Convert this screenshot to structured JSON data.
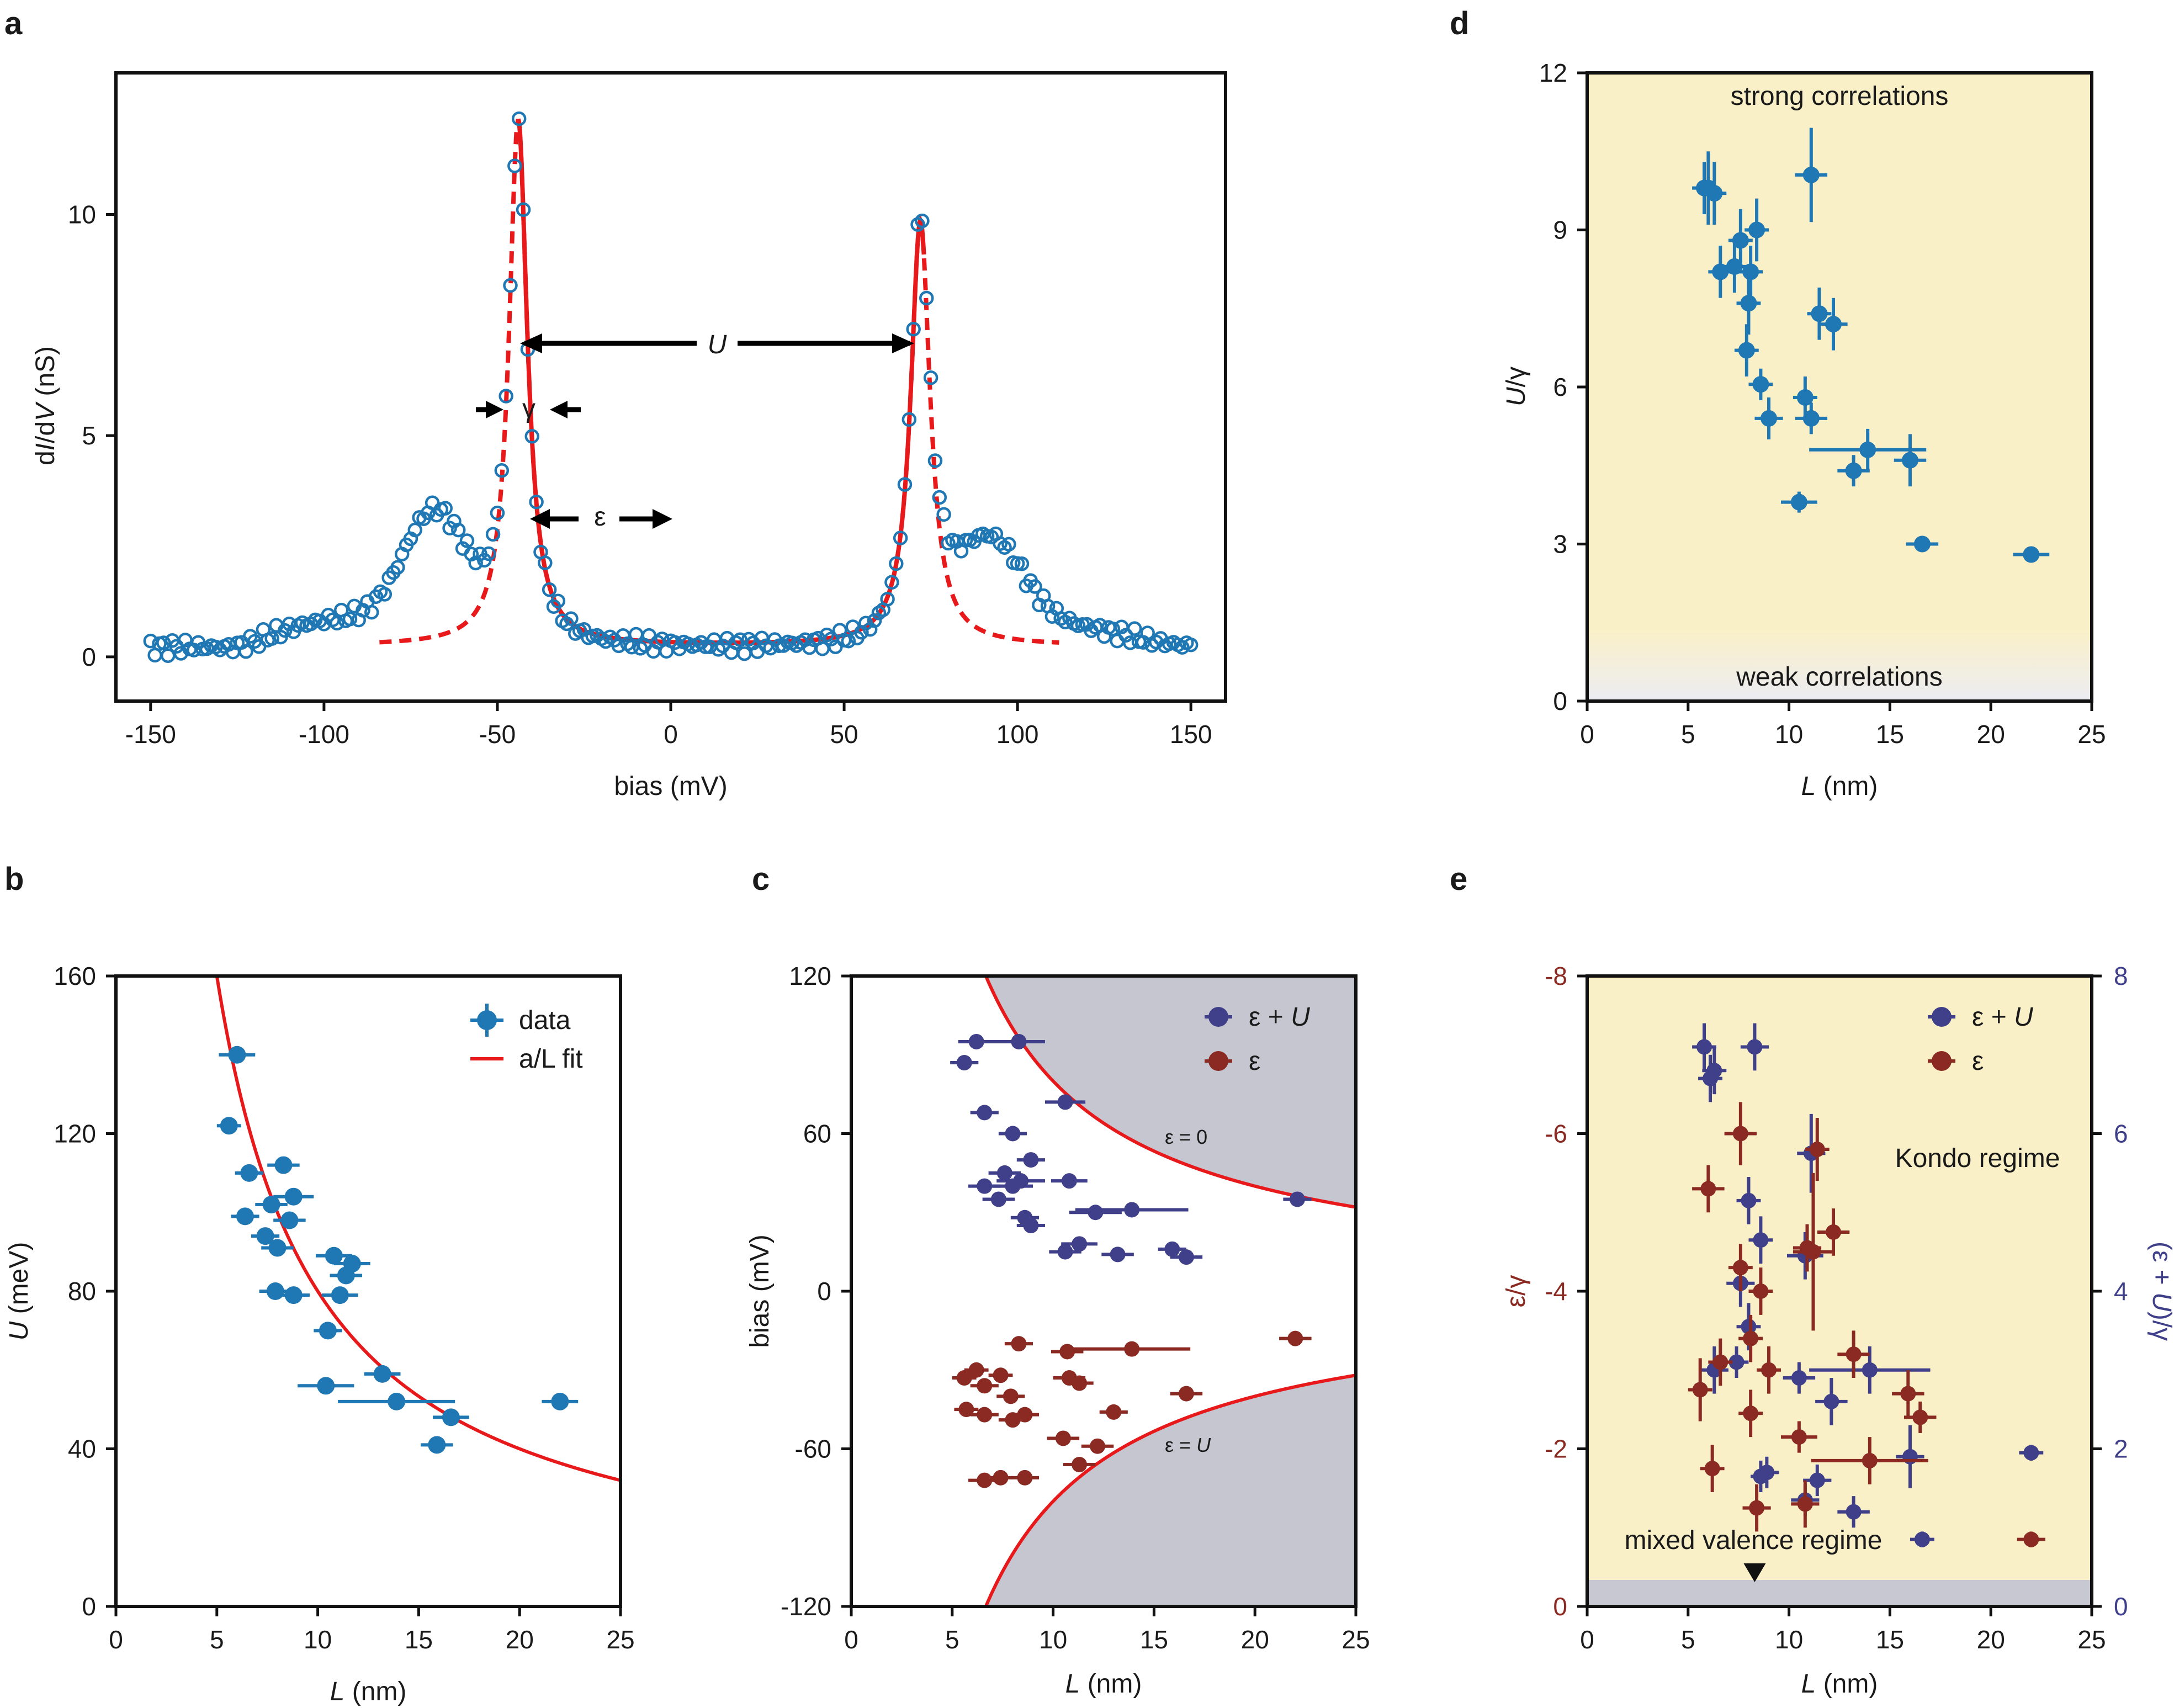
{
  "figure": {
    "panel_labels": [
      "a",
      "b",
      "c",
      "d",
      "e"
    ],
    "colors": {
      "data_blue": "#1f77b4",
      "fit_red": "#e8191b",
      "eU_purple": "#3f3f8a",
      "eps_red": "#8b2a22",
      "shade_yellow": "#faf0c8",
      "shade_gray": "#c6c6d0",
      "mixed_band": "#c8c8d2"
    }
  },
  "chart_data": [
    {
      "id": "a",
      "type": "scatter",
      "xlabel": "bias (mV)",
      "ylabel": "dI/dV (nS)",
      "ylabel_parts": [
        "d",
        "I",
        "/d",
        "V",
        " (nS)"
      ],
      "xlim": [
        -160,
        160
      ],
      "ylim": [
        -1,
        13.2
      ],
      "xticks": [
        -150,
        -100,
        -50,
        0,
        50,
        100,
        150
      ],
      "xtick_labels": [
        "-150",
        "-100",
        "-50",
        "0",
        "50",
        "100",
        "150"
      ],
      "yticks": [
        0,
        5,
        10
      ],
      "ytick_labels": [
        "0",
        "5",
        "10"
      ],
      "series": [
        {
          "style": "open-circle",
          "color": "#1f77b4",
          "model": {
            "background_eps": -44,
            "background_epsU": 72,
            "solid_fit_range": [
              -44,
              73
            ],
            "dashed_fit_range": [
              -84,
              112
            ]
          }
        }
      ],
      "annotations": {
        "U": "U",
        "gamma": "γ",
        "epsilon": "ε"
      }
    },
    {
      "id": "b",
      "type": "scatter",
      "xlabel": "L (nm)",
      "xlabel_parts": [
        "L",
        " (nm)"
      ],
      "ylabel": "U (meV)",
      "ylabel_parts": [
        "U",
        " (meV)"
      ],
      "xlim": [
        0,
        25
      ],
      "ylim": [
        0,
        160
      ],
      "xticks": [
        0,
        5,
        10,
        15,
        20,
        25
      ],
      "yticks": [
        0,
        40,
        80,
        120,
        160
      ],
      "series": [
        {
          "name": "data",
          "color": "#1f77b4",
          "points": [
            [
              6.0,
              140,
              0.9
            ],
            [
              5.6,
              122,
              0.6
            ],
            [
              6.6,
              110,
              0.7
            ],
            [
              8.3,
              112,
              0.8
            ],
            [
              7.7,
              102,
              0.8
            ],
            [
              8.8,
              104,
              1.0
            ],
            [
              6.4,
              99,
              0.7
            ],
            [
              8.6,
              98,
              0.8
            ],
            [
              7.4,
              94,
              0.7
            ],
            [
              8.0,
              91,
              0.8
            ],
            [
              7.9,
              80,
              0.8
            ],
            [
              8.8,
              79,
              0.8
            ],
            [
              10.8,
              89,
              0.9
            ],
            [
              11.7,
              87,
              0.9
            ],
            [
              11.4,
              84,
              0.8
            ],
            [
              11.1,
              79,
              0.9
            ],
            [
              10.5,
              70,
              0.7
            ],
            [
              10.4,
              56,
              1.4
            ],
            [
              13.2,
              59,
              0.9
            ],
            [
              13.9,
              52,
              2.9
            ],
            [
              16.6,
              48,
              0.9
            ],
            [
              15.9,
              41,
              0.8
            ],
            [
              22.0,
              52,
              0.9
            ]
          ]
        },
        {
          "name": "a/L fit",
          "color": "#e8191b",
          "type": "line",
          "a": 800
        }
      ],
      "legend": {
        "position": "top-right",
        "labels": [
          "data",
          "a/L fit"
        ]
      }
    },
    {
      "id": "c",
      "type": "scatter",
      "xlabel": "L (nm)",
      "xlabel_parts": [
        "L",
        " (nm)"
      ],
      "ylabel": "bias (mV)",
      "xlim": [
        0,
        25
      ],
      "ylim": [
        -120,
        120
      ],
      "xticks": [
        0,
        5,
        10,
        15,
        20,
        25
      ],
      "yticks": [
        -120,
        -60,
        0,
        60,
        120
      ],
      "series": [
        {
          "name": "ε + U",
          "color": "#3f3f8a",
          "points": [
            [
              6.2,
              95,
              0.9
            ],
            [
              8.3,
              95,
              1.3
            ],
            [
              5.6,
              87,
              0.7
            ],
            [
              6.6,
              68,
              0.7
            ],
            [
              10.6,
              72,
              1.0
            ],
            [
              8.0,
              60,
              0.7
            ],
            [
              8.9,
              50,
              0.7
            ],
            [
              7.6,
              45,
              0.8
            ],
            [
              8.4,
              42,
              1.2
            ],
            [
              10.8,
              42,
              0.9
            ],
            [
              6.6,
              40,
              0.8
            ],
            [
              8.0,
              40,
              1.0
            ],
            [
              7.3,
              35,
              0.8
            ],
            [
              12.1,
              30,
              1.3
            ],
            [
              13.9,
              31,
              2.8
            ],
            [
              8.6,
              28,
              0.7
            ],
            [
              8.9,
              25,
              0.7
            ],
            [
              11.3,
              18,
              0.9
            ],
            [
              10.6,
              15,
              0.8
            ],
            [
              13.2,
              14,
              0.8
            ],
            [
              15.9,
              16,
              0.7
            ],
            [
              16.6,
              13,
              0.8
            ],
            [
              22.1,
              35,
              0.7
            ]
          ]
        },
        {
          "name": "ε",
          "color": "#8b2a22",
          "points": [
            [
              5.6,
              -33,
              0.6
            ],
            [
              6.2,
              -30,
              0.6
            ],
            [
              6.6,
              -36,
              0.7
            ],
            [
              7.4,
              -32,
              0.6
            ],
            [
              8.3,
              -20,
              0.7
            ],
            [
              10.7,
              -23,
              0.8
            ],
            [
              13.9,
              -22,
              2.9
            ],
            [
              22.0,
              -18,
              0.8
            ],
            [
              7.9,
              -40,
              0.7
            ],
            [
              8.6,
              -47,
              0.7
            ],
            [
              8.0,
              -49,
              0.7
            ],
            [
              10.8,
              -33,
              0.8
            ],
            [
              11.3,
              -35,
              0.7
            ],
            [
              16.6,
              -39,
              0.8
            ],
            [
              10.5,
              -56,
              0.8
            ],
            [
              12.2,
              -59,
              0.8
            ],
            [
              13.0,
              -46,
              0.7
            ],
            [
              5.7,
              -45,
              0.6
            ],
            [
              6.6,
              -47,
              0.7
            ],
            [
              11.3,
              -66,
              0.8
            ],
            [
              6.6,
              -72,
              0.8
            ],
            [
              7.4,
              -71,
              0.6
            ],
            [
              8.6,
              -71,
              0.7
            ]
          ]
        }
      ],
      "boundaries": [
        {
          "label": "ε = 0",
          "a": 800,
          "sign": 1
        },
        {
          "label": "ε = U",
          "a": 800,
          "sign": -1
        }
      ],
      "legend": {
        "position": "top-right",
        "labels": [
          "ε + U",
          "ε"
        ]
      }
    },
    {
      "id": "d",
      "type": "scatter",
      "xlabel": "L (nm)",
      "xlabel_parts": [
        "L",
        " (nm)"
      ],
      "ylabel": "U/γ",
      "ylabel_parts": [
        "U",
        "/γ"
      ],
      "xlim": [
        0,
        25
      ],
      "ylim": [
        0,
        12
      ],
      "xticks": [
        0,
        5,
        10,
        15,
        20,
        25
      ],
      "yticks": [
        0,
        3,
        6,
        9,
        12
      ],
      "regions": {
        "strong": "strong correlations",
        "weak": "weak correlations"
      },
      "series": [
        {
          "color": "#1f77b4",
          "points": [
            [
              5.8,
              9.8,
              0.6,
              0.5
            ],
            [
              6.3,
              9.7,
              0.6,
              0.6
            ],
            [
              6.0,
              9.8,
              0.5,
              0.7
            ],
            [
              11.1,
              10.05,
              0.8,
              0.9
            ],
            [
              8.4,
              9.0,
              0.6,
              0.6
            ],
            [
              7.6,
              8.8,
              0.6,
              0.6
            ],
            [
              6.6,
              8.2,
              0.6,
              0.5
            ],
            [
              7.3,
              8.3,
              0.6,
              0.5
            ],
            [
              8.1,
              8.2,
              0.6,
              0.5
            ],
            [
              8.0,
              7.6,
              0.6,
              0.6
            ],
            [
              11.5,
              7.4,
              0.6,
              0.5
            ],
            [
              12.2,
              7.2,
              0.7,
              0.5
            ],
            [
              7.9,
              6.7,
              0.6,
              0.5
            ],
            [
              8.6,
              6.05,
              0.6,
              0.3
            ],
            [
              10.8,
              5.8,
              0.6,
              0.4
            ],
            [
              9.0,
              5.4,
              0.7,
              0.4
            ],
            [
              11.1,
              5.4,
              0.8,
              0.3
            ],
            [
              13.9,
              4.8,
              2.9,
              0.4
            ],
            [
              16.0,
              4.6,
              0.8,
              0.5
            ],
            [
              13.2,
              4.4,
              0.8,
              0.3
            ],
            [
              10.5,
              3.8,
              0.9,
              0.2
            ],
            [
              16.6,
              3.0,
              0.8,
              0.1
            ],
            [
              22.0,
              2.8,
              0.9,
              0.1
            ]
          ]
        }
      ]
    },
    {
      "id": "e",
      "type": "scatter",
      "xlabel": "L (nm)",
      "xlabel_parts": [
        "L",
        " (nm)"
      ],
      "ylabel_left": "ε/γ",
      "ylabel_right": "(ε + U)/γ",
      "ylabel_right_parts": [
        "(ε + ",
        "U",
        ")/γ"
      ],
      "xlim": [
        0,
        25
      ],
      "ylim_left": [
        0,
        -8
      ],
      "ylim_right": [
        0,
        8
      ],
      "xticks": [
        0,
        5,
        10,
        15,
        20,
        25
      ],
      "yticks_left": [
        0,
        -2,
        -4,
        -6,
        -8
      ],
      "yticks_right": [
        0,
        2,
        4,
        6,
        8
      ],
      "regions": {
        "kondo": "Kondo regime",
        "mixed": "mixed valence regime"
      },
      "series": [
        {
          "name": "ε + U",
          "color": "#3f3f8a",
          "points": [
            [
              5.8,
              7.1,
              0.6,
              0.3
            ],
            [
              8.3,
              7.1,
              0.7,
              0.3
            ],
            [
              6.3,
              6.8,
              0.6,
              0.3
            ],
            [
              6.1,
              6.7,
              0.6,
              0.3
            ],
            [
              11.1,
              5.75,
              0.7,
              0.5
            ],
            [
              8.0,
              5.15,
              0.6,
              0.3
            ],
            [
              8.6,
              4.65,
              0.6,
              0.3
            ],
            [
              10.8,
              4.45,
              0.9,
              0.3
            ],
            [
              7.6,
              4.1,
              0.7,
              0.3
            ],
            [
              8.0,
              3.55,
              0.6,
              0.3
            ],
            [
              14.0,
              3.0,
              3.0,
              0.3
            ],
            [
              6.3,
              3.0,
              0.7,
              0.3
            ],
            [
              7.4,
              3.1,
              0.6,
              0.2
            ],
            [
              10.5,
              2.9,
              0.8,
              0.2
            ],
            [
              12.1,
              2.6,
              0.8,
              0.3
            ],
            [
              16.0,
              1.9,
              0.7,
              0.4
            ],
            [
              22.0,
              1.95,
              0.6,
              0.1
            ],
            [
              8.9,
              1.7,
              0.6,
              0.2
            ],
            [
              8.6,
              1.65,
              0.5,
              0.2
            ],
            [
              11.4,
              1.6,
              0.7,
              0.2
            ],
            [
              10.8,
              1.35,
              0.7,
              0.2
            ],
            [
              13.2,
              1.2,
              0.8,
              0.2
            ],
            [
              16.6,
              0.85,
              0.6,
              0.1
            ]
          ]
        },
        {
          "name": "ε",
          "color": "#8b2a22",
          "points": [
            [
              7.6,
              -6.0,
              0.8,
              0.4
            ],
            [
              11.4,
              -5.8,
              0.6,
              0.4
            ],
            [
              6.0,
              -5.3,
              0.8,
              0.3
            ],
            [
              12.2,
              -4.75,
              0.8,
              0.3
            ],
            [
              10.9,
              -4.55,
              0.7,
              0.3
            ],
            [
              7.6,
              -4.3,
              0.6,
              0.3
            ],
            [
              8.6,
              -4.0,
              0.6,
              0.3
            ],
            [
              11.2,
              -4.5,
              1.0,
              1.0
            ],
            [
              8.1,
              -3.4,
              0.6,
              0.3
            ],
            [
              13.2,
              -3.2,
              0.8,
              0.3
            ],
            [
              6.6,
              -3.1,
              0.6,
              0.3
            ],
            [
              9.0,
              -3.0,
              0.6,
              0.3
            ],
            [
              5.6,
              -2.75,
              0.6,
              0.4
            ],
            [
              15.9,
              -2.7,
              0.8,
              0.3
            ],
            [
              16.5,
              -2.4,
              0.8,
              0.2
            ],
            [
              8.1,
              -2.45,
              0.6,
              0.3
            ],
            [
              10.5,
              -2.15,
              0.9,
              0.2
            ],
            [
              14.0,
              -1.85,
              2.9,
              0.3
            ],
            [
              6.2,
              -1.75,
              0.6,
              0.3
            ],
            [
              8.4,
              -1.25,
              0.7,
              0.3
            ],
            [
              10.8,
              -1.3,
              0.7,
              0.3
            ],
            [
              22.0,
              -0.85,
              0.7,
              0.1
            ]
          ]
        }
      ],
      "legend": {
        "position": "top-right",
        "labels": [
          "ε + U",
          "ε"
        ]
      },
      "marker_x": 8.3
    }
  ]
}
